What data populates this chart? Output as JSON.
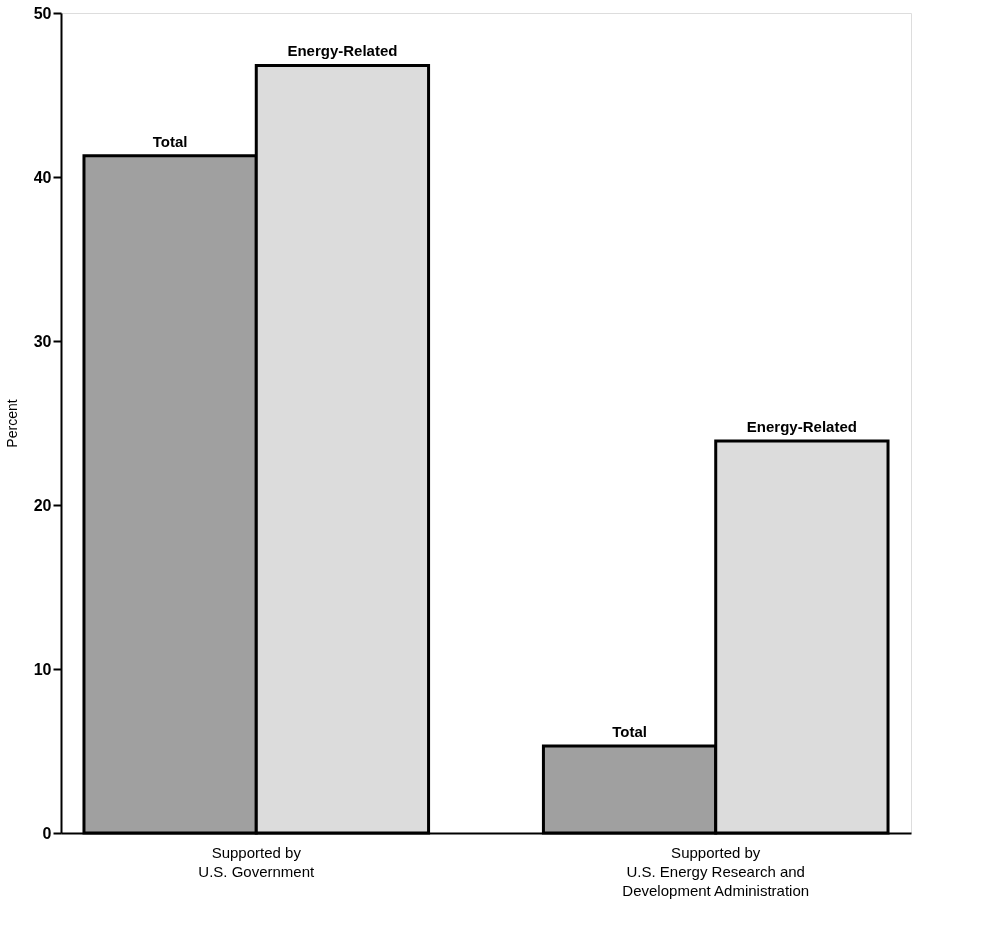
{
  "chart_data": {
    "type": "bar",
    "ylabel": "Percent",
    "categories": [
      "Supported by\nU.S. Government",
      "Supported by\nU.S. Energy Research and\nDevelopment Administration"
    ],
    "series": [
      {
        "name": "Total",
        "color": "#a0a0a0",
        "values": [
          41.3,
          5.3
        ]
      },
      {
        "name": "Energy-Related",
        "color": "#dcdcdc",
        "values": [
          46.8,
          23.9
        ]
      }
    ],
    "ylim": [
      0,
      50
    ],
    "yticks": [
      0,
      10,
      20,
      30,
      40,
      50
    ],
    "grid": false
  }
}
